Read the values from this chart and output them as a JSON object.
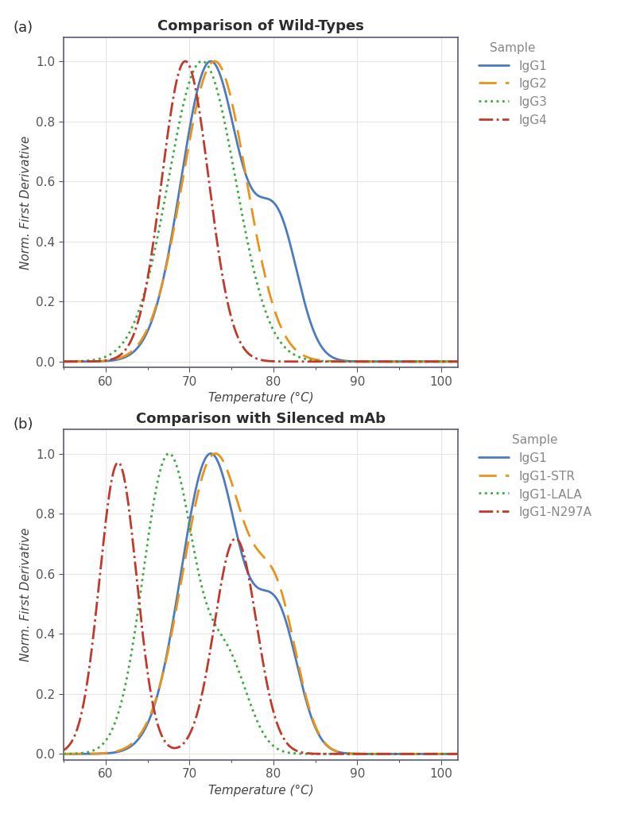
{
  "title_a": "Comparison of Wild-Types",
  "title_b": "Comparison with Silenced mAb",
  "xlabel": "Temperature (°C)",
  "ylabel": "Norm. First Derivative",
  "label_a": "(a)",
  "label_b": "(b)",
  "xlim": [
    55,
    102
  ],
  "ylim": [
    -0.02,
    1.08
  ],
  "xticks": [
    60,
    70,
    80,
    90,
    100
  ],
  "yticks": [
    0.0,
    0.2,
    0.4,
    0.6,
    0.8,
    1.0
  ],
  "legend_title": "Sample",
  "colors": {
    "IgG1": "#4C7BBF",
    "IgG2": "#E8941A",
    "IgG3": "#3DAA3D",
    "IgG4": "#C0392B",
    "IgG1_STR": "#E8941A",
    "IgG1_LALA": "#3DAA3D",
    "IgG1_N297A": "#C0392B"
  },
  "background_color": "#ffffff",
  "spine_color": "#5a5a7a",
  "tick_color": "#555555",
  "text_color": "#444444",
  "legend_text_color": "#888888",
  "title_color": "#2c2c2c"
}
